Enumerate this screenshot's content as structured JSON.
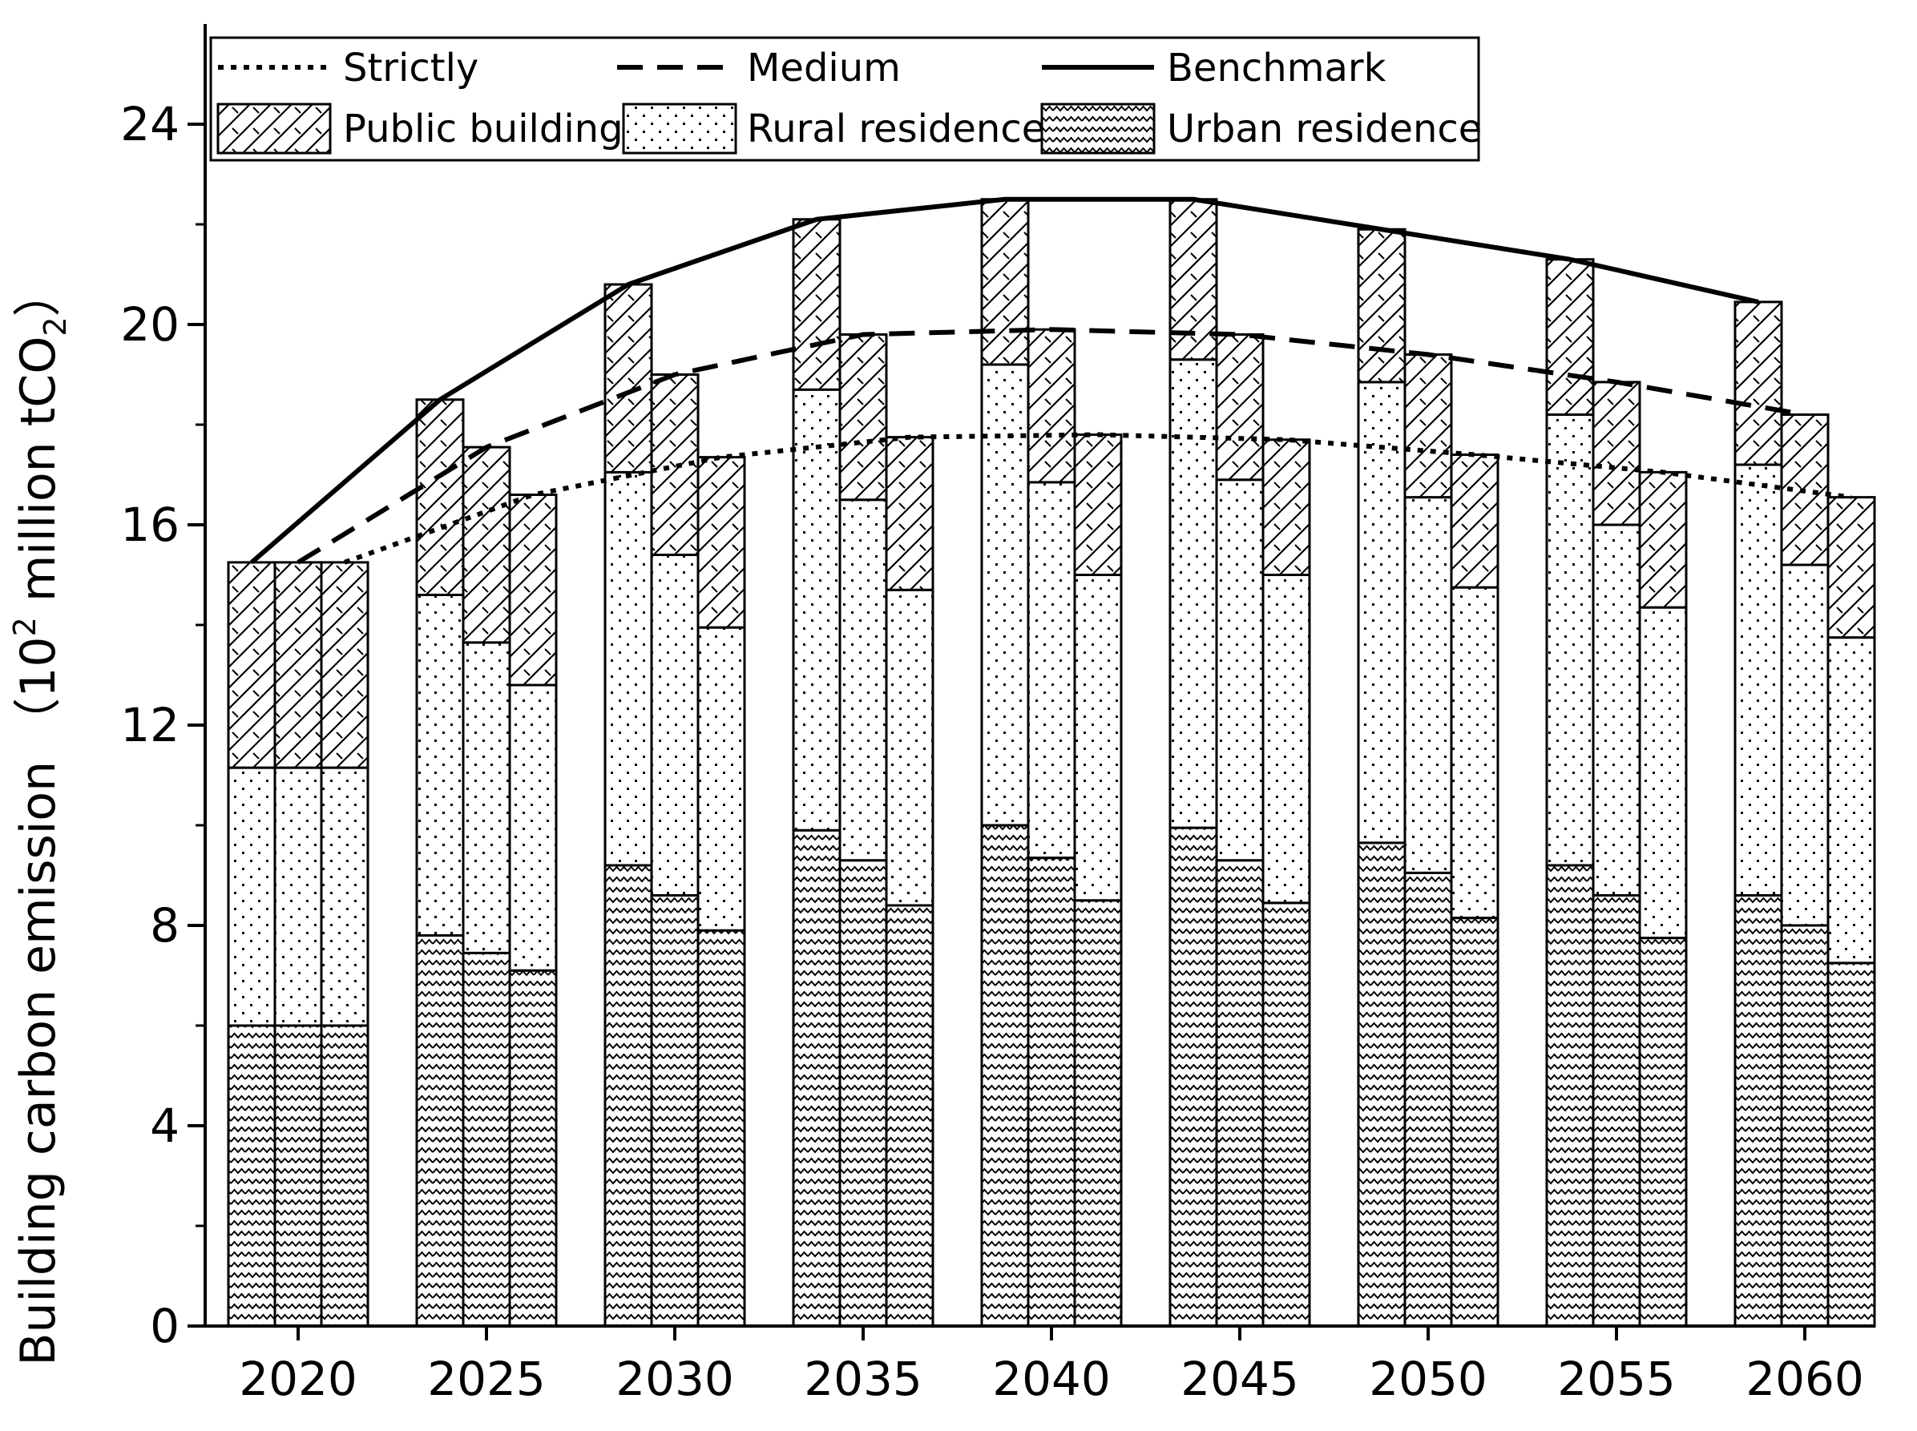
{
  "chart_data": {
    "type": "bar",
    "subtype": "stacked-grouped-with-lines",
    "ylabel": "Building carbon emission",
    "ylabel_unit_prefix": "（10",
    "ylabel_unit_sup": "2",
    "ylabel_unit_mid": " million tCO",
    "ylabel_unit_sub": "2",
    "ylabel_unit_suffix": "）",
    "ylim": [
      0,
      26
    ],
    "y_ticks": [
      0,
      4,
      8,
      12,
      16,
      20,
      24
    ],
    "y_tick_labels": [
      "0",
      "4",
      "8",
      "12",
      "16",
      "20",
      "24"
    ],
    "categories": [
      "2020",
      "2025",
      "2030",
      "2035",
      "2040",
      "2045",
      "2050",
      "2055",
      "2060"
    ],
    "scenarios": [
      "Benchmark",
      "Medium",
      "Strictly"
    ],
    "stack_series": [
      {
        "name": "Urban residence",
        "pattern": "waves",
        "values": [
          [
            6.0,
            6.0,
            6.0
          ],
          [
            7.8,
            7.45,
            7.1
          ],
          [
            9.2,
            8.6,
            7.9
          ],
          [
            9.9,
            9.3,
            8.4
          ],
          [
            10.0,
            9.35,
            8.5
          ],
          [
            9.95,
            9.3,
            8.45
          ],
          [
            9.65,
            9.05,
            8.15
          ],
          [
            9.2,
            8.6,
            7.75
          ],
          [
            8.6,
            8.0,
            7.25
          ]
        ]
      },
      {
        "name": "Rural residence",
        "pattern": "dots",
        "values": [
          [
            5.15,
            5.15,
            5.15
          ],
          [
            6.8,
            6.2,
            5.7
          ],
          [
            7.85,
            6.8,
            6.05
          ],
          [
            8.8,
            7.2,
            6.3
          ],
          [
            9.2,
            7.5,
            6.5
          ],
          [
            9.35,
            7.6,
            6.55
          ],
          [
            9.2,
            7.5,
            6.6
          ],
          [
            9.0,
            7.4,
            6.6
          ],
          [
            8.6,
            7.2,
            6.5
          ]
        ]
      },
      {
        "name": "Public building",
        "pattern": "hatch",
        "values": [
          [
            4.1,
            4.1,
            4.1
          ],
          [
            3.9,
            3.9,
            3.8
          ],
          [
            3.75,
            3.6,
            3.4
          ],
          [
            3.4,
            3.3,
            3.05
          ],
          [
            3.3,
            3.05,
            2.8
          ],
          [
            3.2,
            2.9,
            2.7
          ],
          [
            3.05,
            2.85,
            2.65
          ],
          [
            3.1,
            2.85,
            2.7
          ],
          [
            3.25,
            3.0,
            2.8
          ]
        ]
      }
    ],
    "line_series": [
      {
        "name": "Strictly",
        "style": "dotted",
        "scenario_index": 2,
        "values": [
          15.25,
          16.6,
          17.35,
          17.75,
          17.8,
          17.7,
          17.4,
          17.05,
          16.55
        ]
      },
      {
        "name": "Medium",
        "style": "dashed",
        "scenario_index": 1,
        "values": [
          15.25,
          17.55,
          19.0,
          19.8,
          19.9,
          19.8,
          19.4,
          18.85,
          18.2
        ]
      },
      {
        "name": "Benchmark",
        "style": "solid",
        "scenario_index": 0,
        "values": [
          15.25,
          18.5,
          20.8,
          22.1,
          22.5,
          22.5,
          21.9,
          21.3,
          20.45
        ]
      }
    ],
    "legend": {
      "placement": "top-left",
      "entries": [
        "Strictly",
        "Medium",
        "Benchmark",
        "Public building",
        "Rural residence",
        "Urban residence"
      ]
    },
    "grid": false
  }
}
